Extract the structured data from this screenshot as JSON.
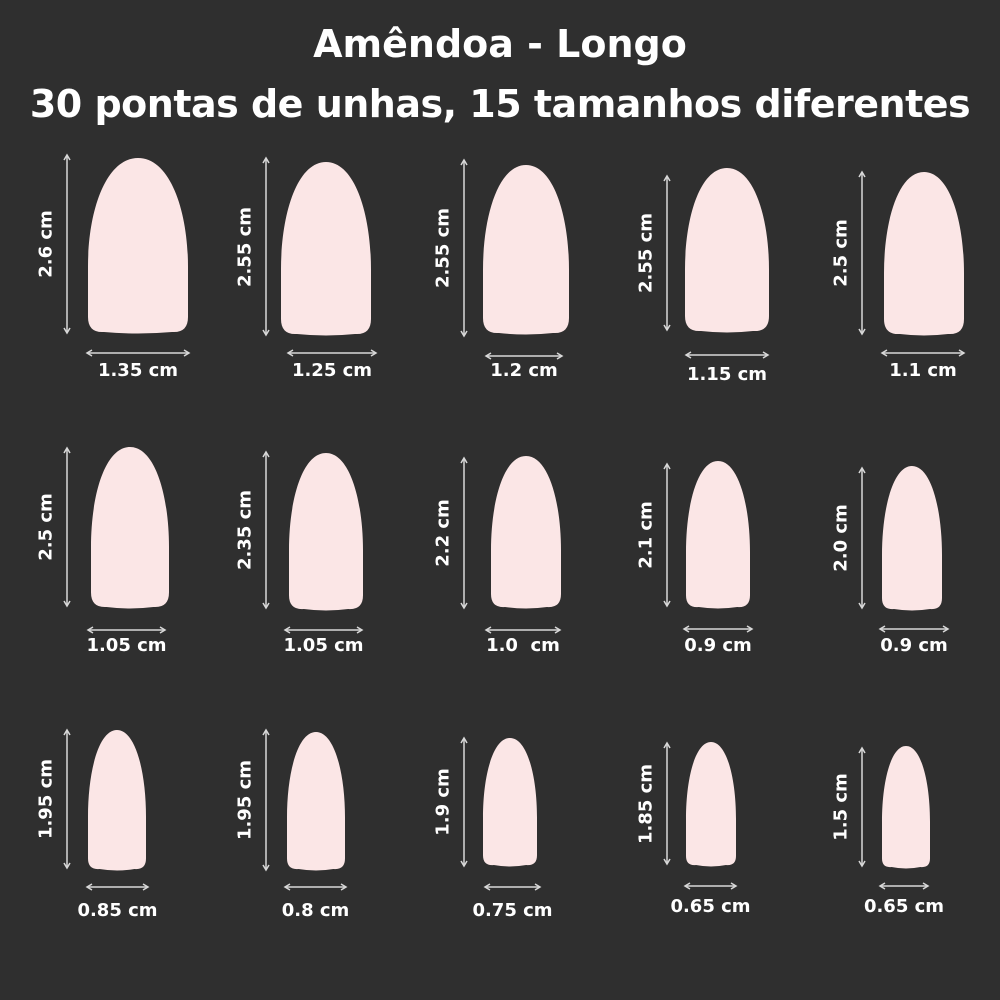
{
  "header": {
    "title": "Amêndoa - Longo",
    "subtitle": "30 pontas de unhas, 15 tamanhos diferentes"
  },
  "colors": {
    "background": "#2f2f2f",
    "nail": "#fbe6e6",
    "text": "#ffffff",
    "arrow": "#d8d8d8"
  },
  "nails": [
    {
      "length": "2.6 cm",
      "width": "1.35 cm"
    },
    {
      "length": "2.55 cm",
      "width": "1.25 cm"
    },
    {
      "length": "2.55 cm",
      "width": "1.2 cm"
    },
    {
      "length": "2.55 cm",
      "width": "1.15 cm"
    },
    {
      "length": "2.5 cm",
      "width": "1.1 cm"
    },
    {
      "length": "2.5 cm",
      "width": "1.05 cm"
    },
    {
      "length": "2.35 cm",
      "width": "1.05 cm"
    },
    {
      "length": "2.2 cm",
      "width": "1.0  cm"
    },
    {
      "length": "2.1 cm",
      "width": "0.9 cm"
    },
    {
      "length": "2.0 cm",
      "width": "0.9 cm"
    },
    {
      "length": "1.95 cm",
      "width": "0.85 cm"
    },
    {
      "length": "1.95 cm",
      "width": "0.8 cm"
    },
    {
      "length": "1.9 cm",
      "width": "0.75 cm"
    },
    {
      "length": "1.85 cm",
      "width": "0.65 cm"
    },
    {
      "length": "1.5 cm",
      "width": "0.65 cm"
    }
  ]
}
